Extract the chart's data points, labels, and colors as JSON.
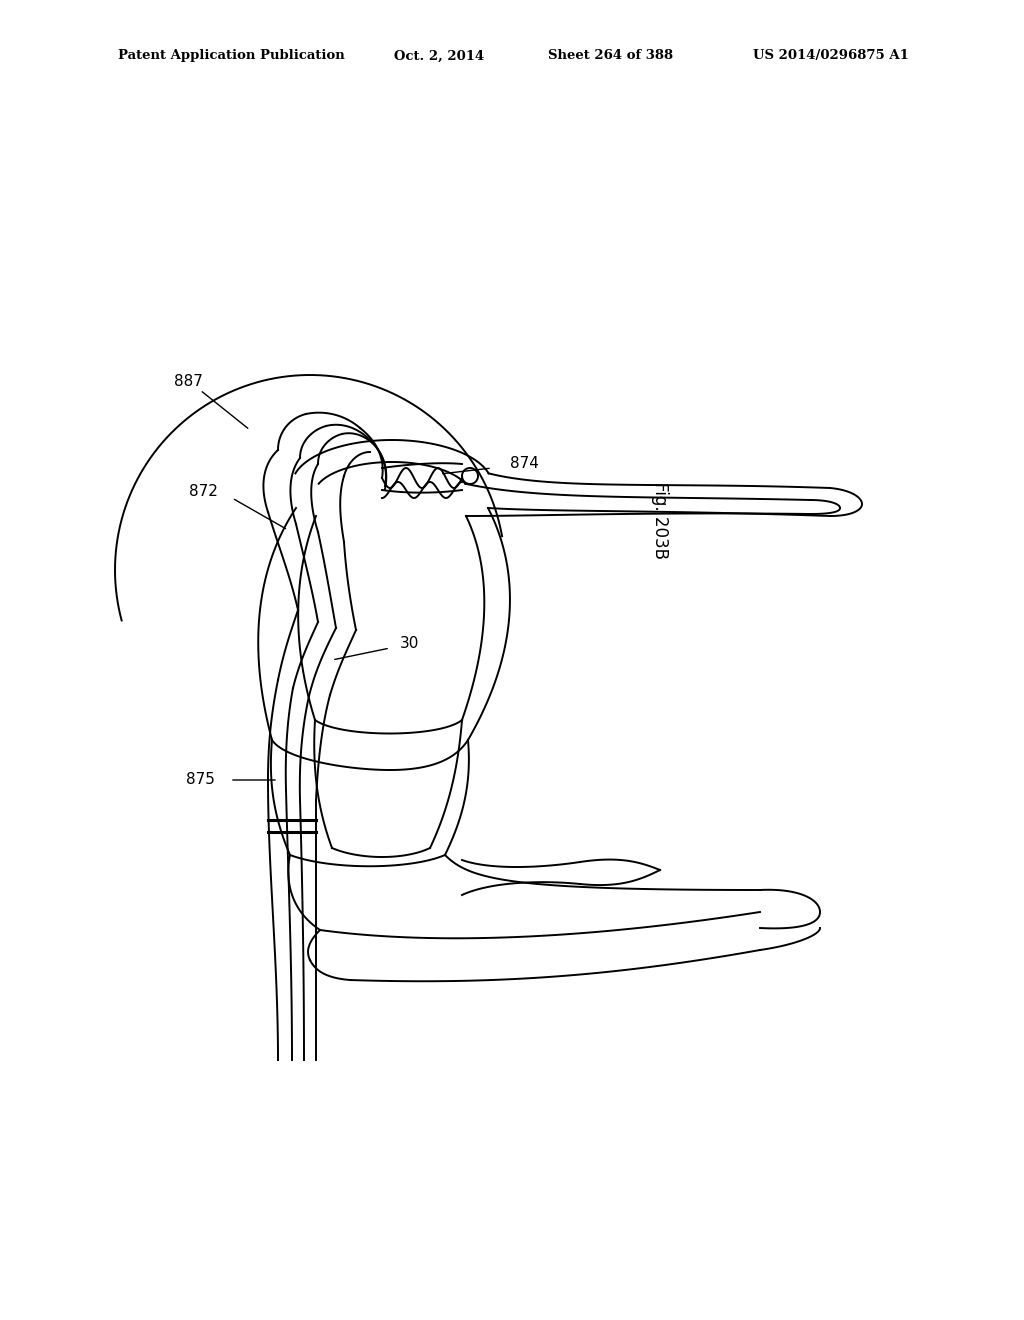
{
  "title": "Patent Application Publication",
  "date": "Oct. 2, 2014",
  "sheet": "Sheet 264 of 388",
  "patent_num": "US 2014/0296875 A1",
  "fig_label": "Fig. 203B",
  "line_color": "#000000",
  "bg_color": "#ffffff",
  "lw": 1.4
}
